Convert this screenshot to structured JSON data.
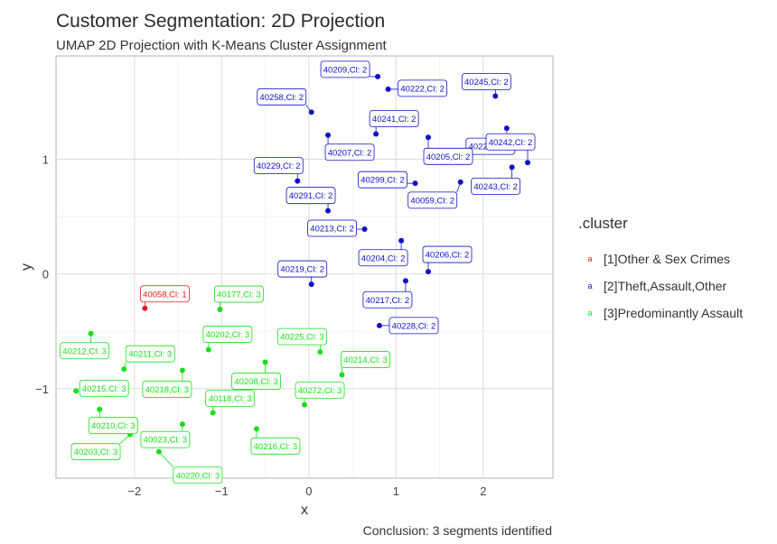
{
  "title": "Customer Segmentation: 2D Projection",
  "subtitle": "UMAP 2D Projection with K-Means Cluster Assignment",
  "caption": "Conclusion: 3 segments identified",
  "legend": {
    "title": ".cluster",
    "items": [
      {
        "key": "a",
        "label": "[1]Other & Sex Crimes",
        "color": "#e41a1c"
      },
      {
        "key": "a",
        "label": "[2]Theft,Assault,Other",
        "color": "#1010c8"
      },
      {
        "key": "a",
        "label": "[3]Predominantly Assault",
        "color": "#18e018"
      }
    ]
  },
  "chart_data": {
    "type": "scatter",
    "xlabel": "x",
    "ylabel": "y",
    "xlim": [
      -2.9,
      2.8
    ],
    "ylim": [
      -1.78,
      1.9
    ],
    "xticks": [
      -2,
      -1,
      0,
      1,
      2
    ],
    "yticks": [
      -1,
      0,
      1
    ],
    "grid": true,
    "legend_position": "right",
    "cluster_colors": {
      "1": "#e41a1c",
      "2": "#1010c8",
      "3": "#18e018"
    },
    "points": [
      {
        "label": "40058,Cl: 1",
        "cluster": 1,
        "x": -1.88,
        "y": -0.3
      },
      {
        "label": "40209,Cl: 2",
        "cluster": 2,
        "x": 0.79,
        "y": 1.72
      },
      {
        "label": "40222,Cl: 2",
        "cluster": 2,
        "x": 0.91,
        "y": 1.61
      },
      {
        "label": "40245,Cl: 2",
        "cluster": 2,
        "x": 2.14,
        "y": 1.55
      },
      {
        "label": "40258,Cl: 2",
        "cluster": 2,
        "x": 0.03,
        "y": 1.41
      },
      {
        "label": "40241,Cl: 2",
        "cluster": 2,
        "x": 0.77,
        "y": 1.22
      },
      {
        "label": "40223,Cl: 2",
        "cluster": 2,
        "x": 2.27,
        "y": 1.27
      },
      {
        "label": "40207,Cl: 2",
        "cluster": 2,
        "x": 0.22,
        "y": 1.21
      },
      {
        "label": "40205,Cl: 2",
        "cluster": 2,
        "x": 1.37,
        "y": 1.19
      },
      {
        "label": "40242,Cl: 2",
        "cluster": 2,
        "x": 2.51,
        "y": 0.97
      },
      {
        "label": "40243,Cl: 2",
        "cluster": 2,
        "x": 2.33,
        "y": 0.93
      },
      {
        "label": "40229,Cl: 2",
        "cluster": 2,
        "x": -0.13,
        "y": 0.81
      },
      {
        "label": "40299,Cl: 2",
        "cluster": 2,
        "x": 1.22,
        "y": 0.79
      },
      {
        "label": "40059,Cl: 2",
        "cluster": 2,
        "x": 1.74,
        "y": 0.8
      },
      {
        "label": "40291,Cl: 2",
        "cluster": 2,
        "x": 0.22,
        "y": 0.55
      },
      {
        "label": "40213,Cl: 2",
        "cluster": 2,
        "x": 0.64,
        "y": 0.39
      },
      {
        "label": "40204,Cl: 2",
        "cluster": 2,
        "x": 1.06,
        "y": 0.29
      },
      {
        "label": "40206,Cl: 2",
        "cluster": 2,
        "x": 1.37,
        "y": 0.02
      },
      {
        "label": "40219,Cl: 2",
        "cluster": 2,
        "x": 0.03,
        "y": -0.09
      },
      {
        "label": "40217,Cl: 2",
        "cluster": 2,
        "x": 1.11,
        "y": -0.06
      },
      {
        "label": "40228,Cl: 2",
        "cluster": 2,
        "x": 0.81,
        "y": -0.45
      },
      {
        "label": "40177,Cl: 3",
        "cluster": 3,
        "x": -1.02,
        "y": -0.31
      },
      {
        "label": "40212,Cl: 3",
        "cluster": 3,
        "x": -2.5,
        "y": -0.52
      },
      {
        "label": "40202,Cl: 3",
        "cluster": 3,
        "x": -1.15,
        "y": -0.66
      },
      {
        "label": "40225,Cl: 3",
        "cluster": 3,
        "x": 0.13,
        "y": -0.68
      },
      {
        "label": "40211,Cl: 3",
        "cluster": 3,
        "x": -2.12,
        "y": -0.83
      },
      {
        "label": "40208,Cl: 3",
        "cluster": 3,
        "x": -0.5,
        "y": -0.77
      },
      {
        "label": "40214,Cl: 3",
        "cluster": 3,
        "x": 0.38,
        "y": -0.88
      },
      {
        "label": "40218,Cl: 3",
        "cluster": 3,
        "x": -1.45,
        "y": -0.84
      },
      {
        "label": "40215,Cl: 3",
        "cluster": 3,
        "x": -2.67,
        "y": -1.02
      },
      {
        "label": "40118,Cl: 3",
        "cluster": 3,
        "x": -1.1,
        "y": -1.21
      },
      {
        "label": "40272,Cl: 3",
        "cluster": 3,
        "x": -0.05,
        "y": -1.14
      },
      {
        "label": "40210,Cl: 3",
        "cluster": 3,
        "x": -2.4,
        "y": -1.18
      },
      {
        "label": "40023,Cl: 3",
        "cluster": 3,
        "x": -1.45,
        "y": -1.31
      },
      {
        "label": "40216,Cl: 3",
        "cluster": 3,
        "x": -0.6,
        "y": -1.35
      },
      {
        "label": "40203,Cl: 3",
        "cluster": 3,
        "x": -2.05,
        "y": -1.4
      },
      {
        "label": "40220,Cl: 3",
        "cluster": 3,
        "x": -1.72,
        "y": -1.55
      }
    ]
  }
}
